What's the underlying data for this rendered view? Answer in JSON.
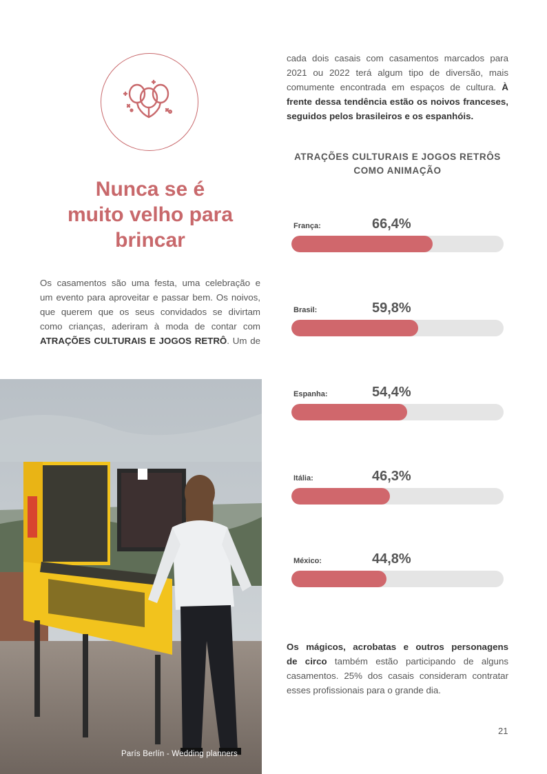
{
  "icon": {
    "name": "balloons-icon",
    "color": "#c8686b"
  },
  "headline": [
    "Nunca se é",
    "muito velho para",
    "brincar"
  ],
  "intro_lines": [
    "Os casamentos são uma festa, uma celebração e",
    "um evento para aproveitar e passar bem. Os noivos,",
    "que querem que os seus convidados se divirtam",
    "como crianças, aderiram à moda de contar com"
  ],
  "intro_bold": "ATRAÇÕES CULTURAIS E JOGOS RETRÔ",
  "intro_tail": ". Um de",
  "right_lines": [
    "cada dois casais com casamentos marcados para",
    "2021 ou 2022 terá algum tipo de diversão, mais",
    "comumente encontrada em espaços de cultura."
  ],
  "right_bold_1": " À",
  "right_bold_lines": [
    "frente dessa tendência estão os noivos franceses,",
    "seguidos pelos brasileiros e os espanhóis."
  ],
  "chart_data": {
    "type": "bar",
    "title": [
      "ATRAÇÕES CULTURAIS E JOGOS RETRÔS",
      "COMO ANIMAÇÃO"
    ],
    "categories": [
      "França:",
      "Brasil:",
      "Espanha:",
      "Itália:",
      "México:"
    ],
    "values": [
      66.4,
      59.8,
      54.4,
      46.3,
      44.8
    ],
    "value_labels": [
      "66,4%",
      "59,8%",
      "54,4%",
      "46,3%",
      "44,8%"
    ],
    "unit": "%",
    "xlim": [
      0,
      100
    ],
    "bar_color": "#d0676c",
    "track_color": "#e5e5e5"
  },
  "photo_caption": "París Berlín - Wedding planners",
  "bottom_bold_1": "Os mágicos, acrobatas e outros personagens",
  "bottom_bold_2": "de circo",
  "bottom_line_2_rest": " também estão participando de alguns",
  "bottom_lines": [
    "casamentos. 25% dos casais consideram contratar",
    "esses profissionais para o grande dia."
  ],
  "page_number": "21"
}
